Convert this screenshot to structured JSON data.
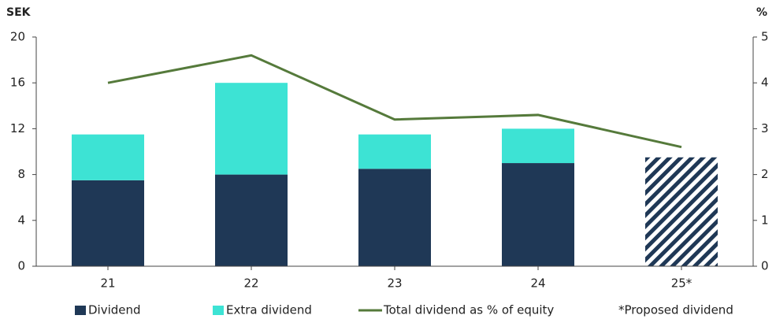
{
  "chart_data": {
    "type": "bar",
    "y_label": "SEK",
    "y2_label": "%",
    "categories": [
      "21",
      "22",
      "23",
      "24",
      "25*"
    ],
    "series": [
      {
        "name": "Dividend",
        "color": "#1f3856",
        "values": [
          7.5,
          8,
          8.5,
          9,
          9.5
        ],
        "hatched": [
          false,
          false,
          false,
          false,
          true
        ]
      },
      {
        "name": "Extra dividend",
        "color": "#3de3d4",
        "values": [
          4,
          8,
          3,
          3,
          null
        ]
      },
      {
        "name": "Total dividend as % of equity",
        "color": "#557a3b",
        "type": "line",
        "axis": "y2",
        "values": [
          4.0,
          4.6,
          3.2,
          3.3,
          2.6
        ]
      }
    ],
    "note": "*Proposed dividend",
    "ylim": [
      0,
      20
    ],
    "yticks": [
      0,
      4,
      8,
      12,
      16,
      20
    ],
    "y2lim": [
      0,
      5
    ],
    "y2ticks": [
      0,
      1,
      2,
      3,
      4,
      5
    ],
    "stacked": true,
    "grid": false
  }
}
